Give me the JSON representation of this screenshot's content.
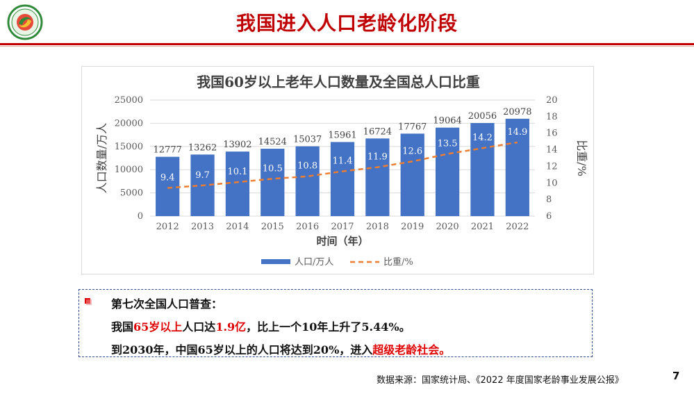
{
  "header": {
    "title": "我国进入人口老龄化阶段"
  },
  "chart_data": {
    "type": "bar",
    "title": "我国60岁以上老年人口数量及全国总人口比重",
    "xlabel": "时间（年）",
    "ylabel": "人口数量/万人",
    "y2label": "比重/%",
    "categories": [
      "2012",
      "2013",
      "2014",
      "2015",
      "2016",
      "2017",
      "2018",
      "2019",
      "2020",
      "2021",
      "2022"
    ],
    "ylim": [
      0,
      25000
    ],
    "yticks": [
      "0",
      "5000",
      "10000",
      "15000",
      "20000",
      "25000"
    ],
    "y2lim": [
      6,
      20
    ],
    "y2ticks": [
      "6",
      "8",
      "10",
      "12",
      "14",
      "16",
      "18",
      "20"
    ],
    "grid": true,
    "legend_position": "bottom",
    "series": [
      {
        "name": "人口/万人",
        "kind": "bar",
        "color": "#4472c4",
        "values": [
          12777,
          13262,
          13902,
          14524,
          15037,
          15961,
          16724,
          17767,
          19064,
          20056,
          20978
        ]
      },
      {
        "name": "比重/%",
        "kind": "line",
        "axis": "right",
        "style": "dashed",
        "color": "#ed7d31",
        "values": [
          9.4,
          9.7,
          10.1,
          10.5,
          10.8,
          11.4,
          11.9,
          12.6,
          13.5,
          14.2,
          14.9
        ]
      }
    ]
  },
  "info_box": {
    "heading": "第七次全国人口普查：",
    "line2": {
      "pre": "我国",
      "red1": "65岁以上",
      "mid": "人口达",
      "red2": "1.9亿",
      "post": "，比上一个10年上升了5.44%。"
    },
    "line3": {
      "pre": "到2030年，中国65岁以上的人口将达到20%，进入",
      "red": "超级老龄社会。"
    },
    "bullet_color": "#e00000"
  },
  "footer": {
    "source": "数据来源：国家统计局、《2022 年度国家老龄事业发展公报》",
    "page_number": "7"
  },
  "colors": {
    "accent": "#c00000",
    "bar": "#4472c4",
    "line": "#ed7d31",
    "box_border": "#2e4d8e"
  }
}
